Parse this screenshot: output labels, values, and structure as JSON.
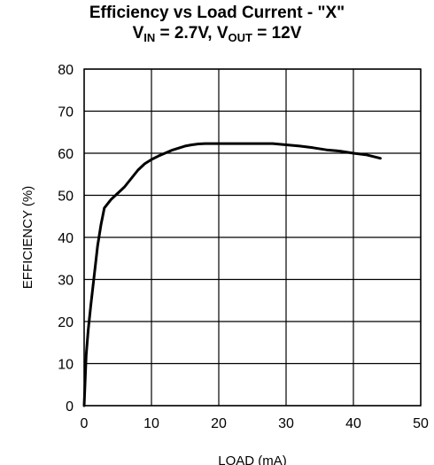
{
  "chart_data": {
    "type": "line",
    "title_line1": "Efficiency vs Load Current - \"X\"",
    "title_line2": {
      "v1": "V",
      "v1_sub": "IN",
      "v1_value": " = 2.7V, ",
      "v2": "V",
      "v2_sub": "OUT",
      "v2_value": " = 12V"
    },
    "xlabel": "LOAD (mA)",
    "ylabel": "EFFICIENCY (%)",
    "xlim": [
      0,
      50
    ],
    "ylim": [
      0,
      80
    ],
    "x_ticks": [
      0,
      10,
      20,
      30,
      40,
      50
    ],
    "y_ticks": [
      0,
      10,
      20,
      30,
      40,
      50,
      60,
      70,
      80
    ],
    "grid": true,
    "series": [
      {
        "x": [
          0,
          0.3,
          0.6,
          1,
          1.5,
          2,
          2.5,
          3,
          4,
          5,
          6,
          7,
          8,
          9,
          10,
          11,
          12,
          13,
          14,
          15,
          16,
          17,
          18,
          20,
          22,
          25,
          28,
          30,
          32,
          34,
          36,
          38,
          40,
          42,
          43,
          44
        ],
        "y": [
          0,
          12,
          18,
          24,
          31,
          38,
          43,
          47,
          49,
          50.5,
          52,
          54,
          56,
          57.5,
          58.5,
          59.3,
          60,
          60.7,
          61.2,
          61.7,
          62,
          62.2,
          62.3,
          62.3,
          62.3,
          62.3,
          62.3,
          62,
          61.7,
          61.3,
          60.8,
          60.5,
          60,
          59.6,
          59.2,
          58.8
        ]
      }
    ]
  }
}
